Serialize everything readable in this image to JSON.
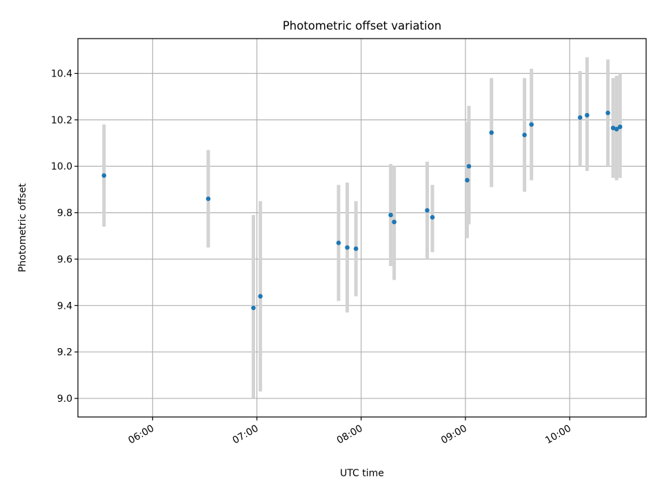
{
  "colors": {
    "point": "#1f77b4",
    "errorbar": "#d3d3d3",
    "grid": "#b0b0b0",
    "axes": "#000000"
  },
  "chart_data": {
    "type": "scatter",
    "title": "Photometric offset variation",
    "xlabel": "UTC time",
    "ylabel": "Photometric offset",
    "x_axis": "time",
    "xlim": [
      "05:17",
      "10:44"
    ],
    "ylim": [
      8.92,
      10.55
    ],
    "x_ticks": [
      "06:00",
      "07:00",
      "08:00",
      "09:00",
      "10:00"
    ],
    "y_ticks": [
      "9.0",
      "9.2",
      "9.4",
      "9.6",
      "9.8",
      "10.0",
      "10.2",
      "10.4"
    ],
    "grid": true,
    "legend": "none",
    "series": [
      {
        "points": [
          {
            "x": "05:32",
            "y": 9.96,
            "ylow": 9.74,
            "yhigh": 10.18
          },
          {
            "x": "06:32",
            "y": 9.86,
            "ylow": 9.65,
            "yhigh": 10.07
          },
          {
            "x": "06:58",
            "y": 9.39,
            "ylow": 9.0,
            "yhigh": 9.79
          },
          {
            "x": "07:02",
            "y": 9.44,
            "ylow": 9.03,
            "yhigh": 9.85
          },
          {
            "x": "07:47",
            "y": 9.67,
            "ylow": 9.42,
            "yhigh": 9.92
          },
          {
            "x": "07:52",
            "y": 9.65,
            "ylow": 9.37,
            "yhigh": 9.93
          },
          {
            "x": "07:57",
            "y": 9.645,
            "ylow": 9.44,
            "yhigh": 9.85
          },
          {
            "x": "08:17",
            "y": 9.79,
            "ylow": 9.57,
            "yhigh": 10.01
          },
          {
            "x": "08:19",
            "y": 9.76,
            "ylow": 9.51,
            "yhigh": 10.0
          },
          {
            "x": "08:38",
            "y": 9.81,
            "ylow": 9.6,
            "yhigh": 10.02
          },
          {
            "x": "08:41",
            "y": 9.78,
            "ylow": 9.63,
            "yhigh": 9.92
          },
          {
            "x": "09:01",
            "y": 9.94,
            "ylow": 9.69,
            "yhigh": 10.19
          },
          {
            "x": "09:02",
            "y": 10.0,
            "ylow": 9.75,
            "yhigh": 10.26
          },
          {
            "x": "09:15",
            "y": 10.145,
            "ylow": 9.91,
            "yhigh": 10.38
          },
          {
            "x": "09:34",
            "y": 10.135,
            "ylow": 9.89,
            "yhigh": 10.38
          },
          {
            "x": "09:38",
            "y": 10.18,
            "ylow": 9.94,
            "yhigh": 10.42
          },
          {
            "x": "10:06",
            "y": 10.21,
            "ylow": 10.0,
            "yhigh": 10.41
          },
          {
            "x": "10:10",
            "y": 10.22,
            "ylow": 9.98,
            "yhigh": 10.47
          },
          {
            "x": "10:22",
            "y": 10.23,
            "ylow": 10.0,
            "yhigh": 10.46
          },
          {
            "x": "10:25",
            "y": 10.165,
            "ylow": 9.95,
            "yhigh": 10.38
          },
          {
            "x": "10:27",
            "y": 10.16,
            "ylow": 9.94,
            "yhigh": 10.39
          },
          {
            "x": "10:29",
            "y": 10.17,
            "ylow": 9.95,
            "yhigh": 10.4
          }
        ]
      }
    ]
  }
}
